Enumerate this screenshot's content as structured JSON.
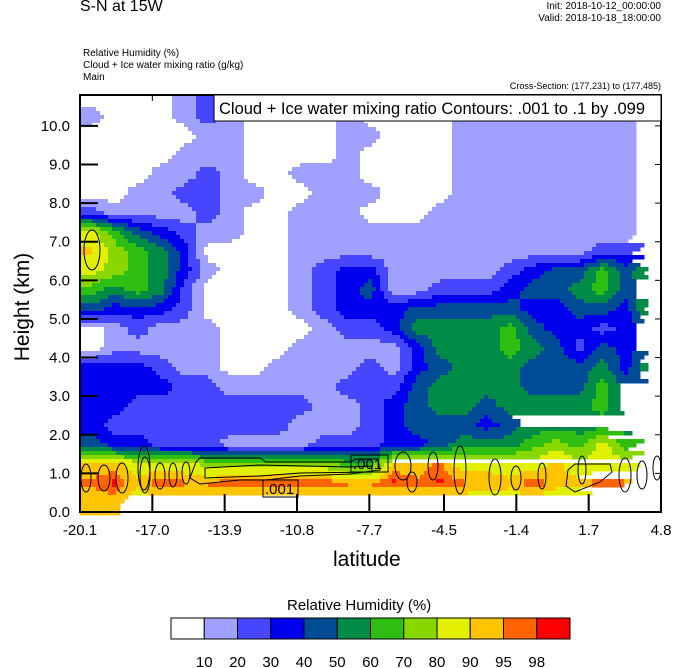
{
  "header": {
    "title": "S-N at 15W",
    "init": "Init: 2018-10-12_00:00:00",
    "valid": "Valid: 2018-10-18_18:00:00",
    "subtitle_lines": [
      "Relative Humidity   (%)",
      "Cloud + Ice water mixing ratio   (g/kg)",
      "Main"
    ],
    "cross_section": "Cross-Section: (177,231) to (177,485)"
  },
  "chart_data": {
    "type": "heatmap",
    "title": "S-N at 15W",
    "xlabel": "latitude",
    "ylabel": "Height (km)",
    "xlim": [
      -20.1,
      4.8
    ],
    "ylim": [
      0,
      10.8
    ],
    "xticks": [
      "-20.1",
      "-17.0",
      "-13.9",
      "-10.8",
      "-7.7",
      "-4.5",
      "-1.4",
      "1.7",
      "4.8"
    ],
    "xtick_values": [
      -20.1,
      -17.0,
      -13.9,
      -10.8,
      -7.7,
      -4.5,
      -1.4,
      1.7,
      4.8
    ],
    "yticks": [
      "0.0",
      "1.0",
      "2.0",
      "3.0",
      "4.0",
      "5.0",
      "6.0",
      "7.0",
      "8.0",
      "9.0",
      "10.0"
    ],
    "ytick_values": [
      0,
      1,
      2,
      3,
      4,
      5,
      6,
      7,
      8,
      9,
      10
    ],
    "contour_info": "Cloud + Ice water mixing ratio Contours: .001 to .1 by .099",
    "contour_labels": [
      ".001",
      ".001"
    ],
    "colorbar": {
      "title": "Relative Humidity  (%)",
      "levels": [
        "10",
        "20",
        "30",
        "40",
        "50",
        "60",
        "70",
        "80",
        "90",
        "95",
        "98"
      ],
      "thresholds": [
        10,
        20,
        30,
        40,
        50,
        60,
        70,
        80,
        90,
        95,
        98
      ],
      "colors": [
        "#ffffff",
        "#a0a0ff",
        "#4646ff",
        "#0000ee",
        "#004b96",
        "#008c46",
        "#2ebe12",
        "#88d800",
        "#e0f000",
        "#ffc400",
        "#ff6400",
        "#ff0000"
      ]
    },
    "grid_note_units": "RH (%), rows from 10.75 km down to 0.25 km every 0.5 km, columns ~1 degree latitude from -19.6 to 4.3",
    "rh_grid": [
      [
        5,
        5,
        5,
        5,
        15,
        25,
        15,
        15,
        15,
        15,
        15,
        15,
        15,
        15,
        15,
        15,
        15,
        15,
        15,
        15,
        25,
        25,
        15,
        15,
        25
      ],
      [
        15,
        5,
        5,
        5,
        15,
        25,
        15,
        5,
        5,
        5,
        5,
        15,
        5,
        5,
        5,
        5,
        15,
        15,
        15,
        15,
        15,
        15,
        15,
        15,
        25
      ],
      [
        5,
        5,
        5,
        5,
        5,
        15,
        15,
        5,
        5,
        5,
        5,
        15,
        15,
        5,
        5,
        5,
        15,
        15,
        15,
        15,
        15,
        15,
        15,
        15,
        25
      ],
      [
        5,
        5,
        5,
        5,
        15,
        15,
        15,
        5,
        5,
        5,
        5,
        15,
        5,
        5,
        5,
        5,
        15,
        15,
        15,
        15,
        15,
        15,
        15,
        15,
        25
      ],
      [
        5,
        5,
        5,
        15,
        15,
        25,
        15,
        5,
        5,
        15,
        15,
        15,
        5,
        5,
        5,
        5,
        15,
        15,
        15,
        15,
        15,
        15,
        15,
        15,
        25
      ],
      [
        5,
        5,
        15,
        15,
        25,
        25,
        15,
        15,
        5,
        5,
        15,
        15,
        15,
        5,
        5,
        5,
        15,
        15,
        15,
        15,
        15,
        15,
        15,
        15,
        25
      ],
      [
        25,
        15,
        15,
        15,
        15,
        25,
        15,
        5,
        5,
        15,
        15,
        15,
        5,
        5,
        5,
        15,
        15,
        15,
        15,
        15,
        15,
        15,
        15,
        15,
        25
      ],
      [
        85,
        65,
        45,
        35,
        25,
        15,
        15,
        5,
        5,
        15,
        15,
        15,
        15,
        15,
        15,
        15,
        15,
        15,
        15,
        15,
        15,
        15,
        15,
        15,
        25
      ],
      [
        92,
        75,
        65,
        55,
        35,
        5,
        5,
        5,
        5,
        15,
        15,
        15,
        15,
        15,
        15,
        15,
        15,
        15,
        15,
        15,
        15,
        15,
        25,
        25,
        35
      ],
      [
        85,
        75,
        65,
        55,
        35,
        15,
        5,
        5,
        5,
        15,
        25,
        35,
        35,
        15,
        15,
        15,
        15,
        15,
        25,
        35,
        45,
        45,
        65,
        45,
        65
      ],
      [
        65,
        55,
        65,
        55,
        25,
        5,
        5,
        5,
        5,
        15,
        25,
        35,
        45,
        15,
        15,
        25,
        25,
        25,
        35,
        45,
        45,
        55,
        65,
        45,
        55
      ],
      [
        45,
        35,
        35,
        35,
        25,
        5,
        5,
        5,
        5,
        15,
        25,
        35,
        35,
        35,
        45,
        45,
        45,
        45,
        45,
        35,
        35,
        45,
        45,
        35,
        65
      ],
      [
        5,
        15,
        25,
        15,
        15,
        15,
        5,
        5,
        5,
        5,
        15,
        25,
        25,
        35,
        55,
        55,
        55,
        55,
        65,
        45,
        35,
        35,
        25,
        35,
        45
      ],
      [
        5,
        15,
        15,
        15,
        15,
        15,
        5,
        5,
        5,
        15,
        15,
        15,
        15,
        15,
        35,
        55,
        55,
        55,
        65,
        55,
        45,
        25,
        45,
        35,
        45
      ],
      [
        35,
        35,
        35,
        25,
        15,
        15,
        5,
        5,
        15,
        15,
        15,
        15,
        25,
        15,
        35,
        45,
        55,
        55,
        55,
        45,
        45,
        45,
        55,
        35,
        65
      ],
      [
        35,
        35,
        35,
        35,
        25,
        25,
        15,
        15,
        15,
        15,
        15,
        25,
        25,
        25,
        45,
        55,
        55,
        55,
        55,
        45,
        45,
        45,
        65,
        45,
        45
      ],
      [
        35,
        35,
        25,
        25,
        25,
        25,
        25,
        25,
        25,
        25,
        15,
        15,
        25,
        35,
        45,
        55,
        55,
        45,
        55,
        55,
        55,
        55,
        65,
        45,
        45
      ],
      [
        35,
        25,
        25,
        25,
        25,
        25,
        25,
        25,
        25,
        15,
        15,
        15,
        25,
        35,
        45,
        45,
        45,
        35,
        45,
        55,
        55,
        55,
        55,
        55,
        55
      ],
      [
        45,
        35,
        35,
        25,
        25,
        25,
        15,
        15,
        15,
        15,
        25,
        25,
        25,
        35,
        35,
        45,
        55,
        55,
        55,
        65,
        75,
        65,
        85,
        65,
        75
      ],
      [
        92,
        92,
        85,
        85,
        85,
        75,
        75,
        75,
        75,
        75,
        75,
        65,
        65,
        92,
        92,
        96,
        85,
        85,
        85,
        85,
        92,
        85,
        85,
        85,
        92
      ],
      [
        96,
        99,
        92,
        99,
        96,
        96,
        99,
        99,
        99,
        99,
        99,
        96,
        96,
        99,
        96,
        99,
        96,
        96,
        92,
        99,
        92,
        92,
        99,
        96,
        96
      ],
      [
        92,
        92,
        85,
        85,
        85,
        85,
        85,
        85,
        85,
        85,
        85,
        85,
        85,
        85,
        85,
        85,
        85,
        80,
        85,
        85,
        85,
        85,
        85,
        85,
        85
      ]
    ]
  }
}
